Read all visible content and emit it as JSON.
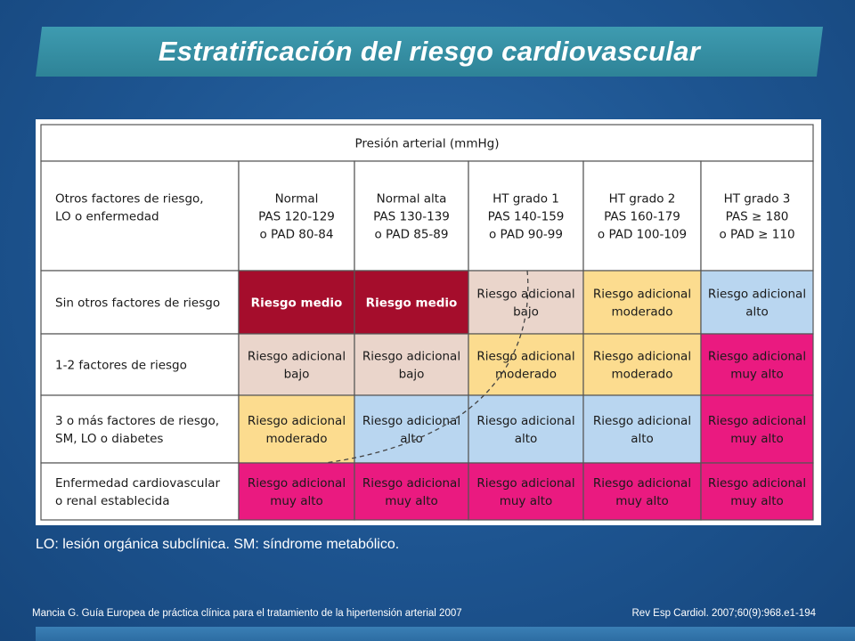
{
  "title": "Estratificación del riesgo cardiovascular",
  "table": {
    "super_header": "Presión arterial (mmHg)",
    "corner_header": [
      "Otros factores de riesgo,",
      "LO o enfermedad"
    ],
    "columns": [
      [
        "Normal",
        "PAS 120-129",
        "o PAD 80-84"
      ],
      [
        "Normal alta",
        "PAS 130-139",
        "o PAD 85-89"
      ],
      [
        "HT grado 1",
        "PAS 140-159",
        "o PAD 90-99"
      ],
      [
        "HT grado 2",
        "PAS 160-179",
        "o PAD 100-109"
      ],
      [
        "HT grado 3",
        "PAS ≥ 180",
        "o PAD ≥ 110"
      ]
    ],
    "rows": [
      {
        "label": [
          "Sin otros factores de riesgo"
        ],
        "cells": [
          {
            "text": [
              "Riesgo medio"
            ],
            "level": "medio"
          },
          {
            "text": [
              "Riesgo medio"
            ],
            "level": "medio"
          },
          {
            "text": [
              "Riesgo adicional",
              "bajo"
            ],
            "level": "bajo"
          },
          {
            "text": [
              "Riesgo adicional",
              "moderado"
            ],
            "level": "moderado"
          },
          {
            "text": [
              "Riesgo adicional",
              "alto"
            ],
            "level": "alto"
          }
        ]
      },
      {
        "label": [
          "1-2 factores de riesgo"
        ],
        "cells": [
          {
            "text": [
              "Riesgo adicional",
              "bajo"
            ],
            "level": "bajo"
          },
          {
            "text": [
              "Riesgo adicional",
              "bajo"
            ],
            "level": "bajo"
          },
          {
            "text": [
              "Riesgo adicional",
              "moderado"
            ],
            "level": "moderado"
          },
          {
            "text": [
              "Riesgo adicional",
              "moderado"
            ],
            "level": "moderado"
          },
          {
            "text": [
              "Riesgo adicional",
              "muy alto"
            ],
            "level": "muy_alto"
          }
        ]
      },
      {
        "label": [
          "3 o más factores de riesgo,",
          "SM, LO o diabetes"
        ],
        "cells": [
          {
            "text": [
              "Riesgo adicional",
              "moderado"
            ],
            "level": "moderado"
          },
          {
            "text": [
              "Riesgo adicional",
              "alto"
            ],
            "level": "alto"
          },
          {
            "text": [
              "Riesgo adicional",
              "alto"
            ],
            "level": "alto"
          },
          {
            "text": [
              "Riesgo adicional",
              "alto"
            ],
            "level": "alto"
          },
          {
            "text": [
              "Riesgo adicional",
              "muy alto"
            ],
            "level": "muy_alto"
          }
        ]
      },
      {
        "label": [
          "Enfermedad cardiovascular",
          "o renal establecida"
        ],
        "cells": [
          {
            "text": [
              "Riesgo adicional",
              "muy alto"
            ],
            "level": "muy_alto"
          },
          {
            "text": [
              "Riesgo adicional",
              "muy alto"
            ],
            "level": "muy_alto"
          },
          {
            "text": [
              "Riesgo adicional",
              "muy alto"
            ],
            "level": "muy_alto"
          },
          {
            "text": [
              "Riesgo adicional",
              "muy alto"
            ],
            "level": "muy_alto"
          },
          {
            "text": [
              "Riesgo adicional",
              "muy alto"
            ],
            "level": "muy_alto"
          }
        ]
      }
    ],
    "level_colors": {
      "medio": "#a50d2c",
      "bajo": "#ead5cb",
      "moderado": "#fcdc8f",
      "alto": "#b9d6f0",
      "muy_alto": "#ea1a80"
    },
    "border_color": "#555555"
  },
  "footnote": "LO: lesión orgánica subclínica. SM: síndrome metabólico.",
  "source_left": "Mancia G. Guía Europea de práctica clínica para el tratamiento de la hipertensión arterial 2007",
  "source_right": "Rev Esp Cardiol. 2007;60(9):968.e1-194"
}
